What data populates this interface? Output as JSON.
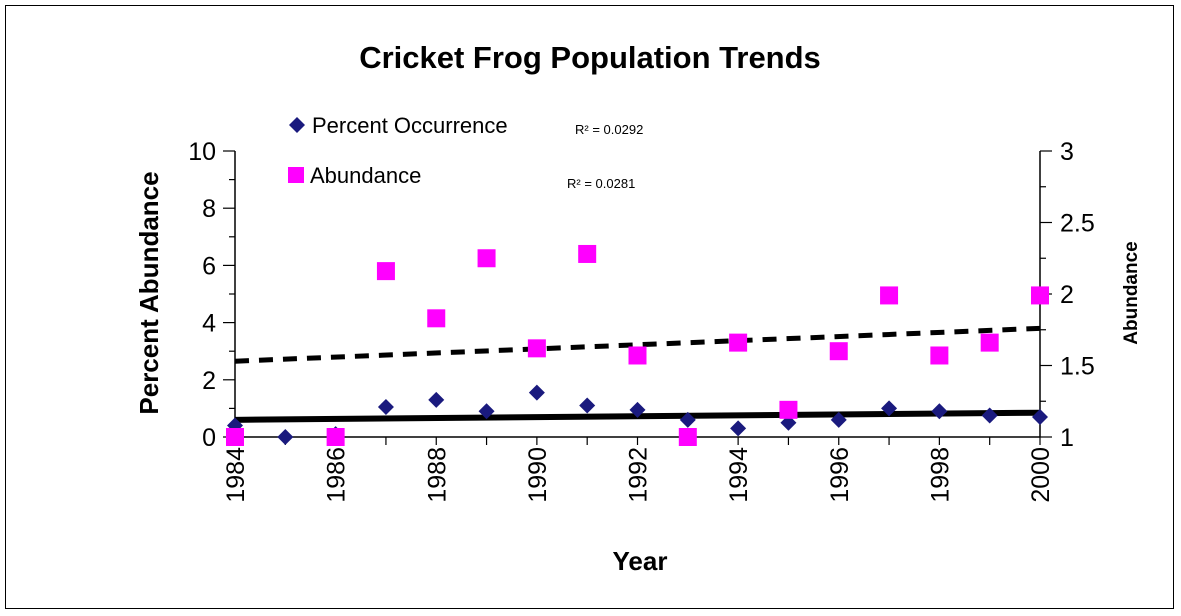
{
  "chart_data": {
    "type": "scatter",
    "title": "Cricket Frog Population Trends",
    "xlabel": "Year",
    "ylabel_left": "Percent Abundance",
    "ylabel_right": "Abundance",
    "xlim": [
      1984,
      2000
    ],
    "ylim_left": [
      0,
      10
    ],
    "ylim_right": [
      1,
      3
    ],
    "x_ticks": [
      "1984",
      "1986",
      "1988",
      "1990",
      "1992",
      "1994",
      "1996",
      "1998",
      "2000"
    ],
    "y_left_ticks": [
      "0",
      "2",
      "4",
      "6",
      "8",
      "10"
    ],
    "y_right_ticks": [
      "1",
      "1.5",
      "2",
      "2.5",
      "3"
    ],
    "legend_position": "top-left",
    "series": [
      {
        "name": "Percent Occurrence",
        "axis": "left",
        "marker": "diamond",
        "color": "#1a1a7e",
        "x": [
          1984,
          1985,
          1986,
          1987,
          1988,
          1989,
          1990,
          1991,
          1992,
          1993,
          1994,
          1995,
          1996,
          1997,
          1998,
          1999,
          2000
        ],
        "y": [
          0.4,
          0.0,
          0.1,
          1.05,
          1.3,
          0.9,
          1.55,
          1.1,
          0.95,
          0.6,
          0.3,
          0.5,
          0.6,
          1.0,
          0.9,
          0.75,
          0.7
        ],
        "r2_label": "R² = 0.0292"
      },
      {
        "name": "Abundance",
        "axis": "right",
        "marker": "square",
        "color": "#ff00ff",
        "x": [
          1984,
          1986,
          1987,
          1988,
          1989,
          1990,
          1991,
          1992,
          1993,
          1994,
          1995,
          1996,
          1997,
          1998,
          1999,
          2000
        ],
        "y": [
          1.0,
          1.0,
          2.16,
          1.83,
          2.25,
          1.62,
          2.28,
          1.57,
          1.0,
          1.66,
          1.19,
          1.6,
          1.99,
          1.57,
          1.66,
          1.99
        ],
        "r2_label": "R² = 0.0281"
      }
    ],
    "trendlines": [
      {
        "series": "Percent Occurrence",
        "style": "solid",
        "color": "#000000",
        "x": [
          1984,
          2000
        ],
        "y": [
          0.6,
          0.85
        ]
      },
      {
        "series": "Abundance",
        "style": "dashed",
        "color": "#000000",
        "x": [
          1984,
          2000
        ],
        "y": [
          1.53,
          1.76
        ]
      }
    ]
  }
}
